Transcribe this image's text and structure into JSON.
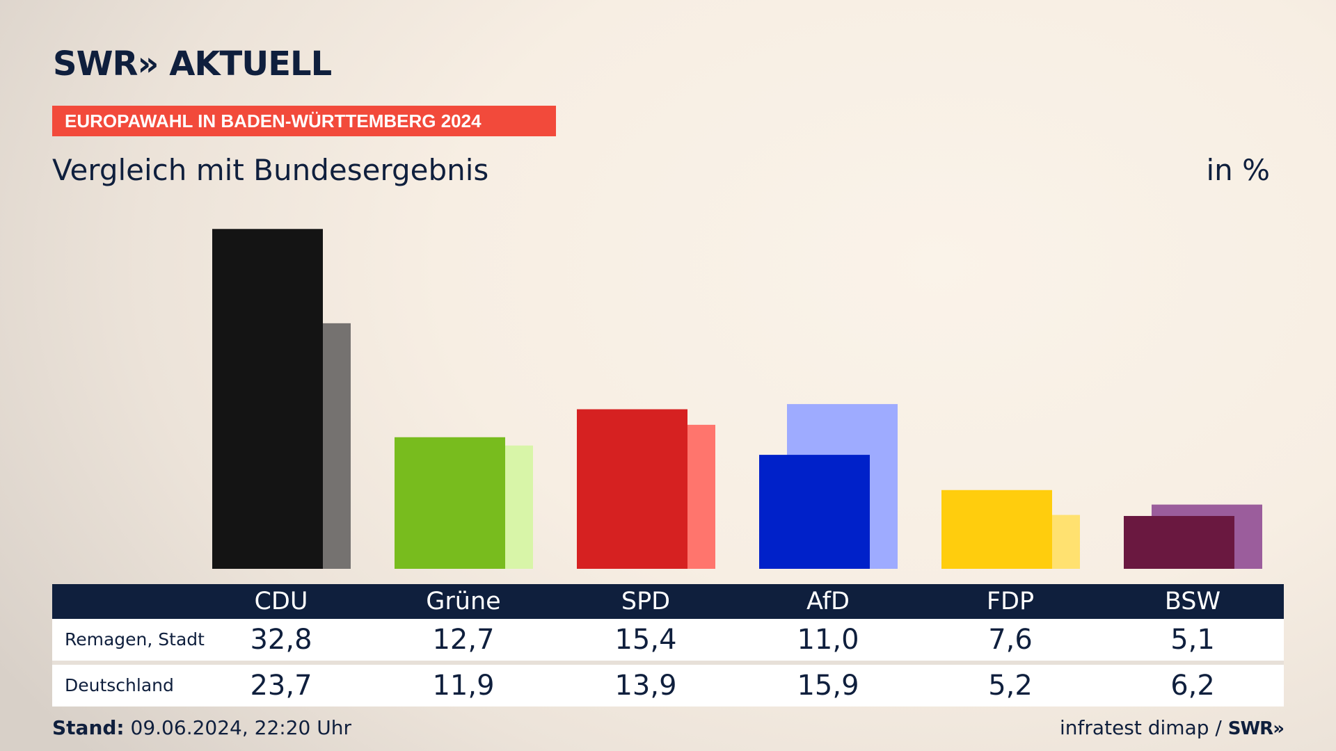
{
  "header": {
    "logo": "SWR» AKTUELL",
    "kicker": "EUROPAWAHL IN BADEN-WÜRTTEMBERG 2024",
    "title": "Vergleich mit Bundesergebnis",
    "unit": "in %"
  },
  "colors": {
    "CDU": [
      "#141414",
      "#757270"
    ],
    "Grüne": [
      "#78bc1e",
      "#d8f5a8"
    ],
    "SPD": [
      "#d62121",
      "#ff756d"
    ],
    "AfD": [
      "#0021c9",
      "#9eabff"
    ],
    "FDP": [
      "#ffcd0d",
      "#ffe170"
    ],
    "BSW": [
      "#6a1840",
      "#9b5d9c"
    ]
  },
  "chart_data": {
    "type": "bar",
    "categories": [
      "CDU",
      "Grüne",
      "SPD",
      "AfD",
      "FDP",
      "BSW"
    ],
    "series": [
      {
        "name": "Remagen, Stadt",
        "values": [
          32.8,
          12.7,
          15.4,
          11.0,
          7.6,
          5.1
        ]
      },
      {
        "name": "Deutschland",
        "values": [
          23.7,
          11.9,
          13.9,
          15.9,
          5.2,
          6.2
        ]
      }
    ],
    "title": "Vergleich mit Bundesergebnis",
    "ylabel": "in %"
  },
  "table": {
    "headers": [
      "CDU",
      "Grüne",
      "SPD",
      "AfD",
      "FDP",
      "BSW"
    ],
    "rows": [
      {
        "label": "Remagen, Stadt",
        "values": [
          "32,8",
          "12,7",
          "15,4",
          "11,0",
          "7,6",
          "5,1"
        ]
      },
      {
        "label": "Deutschland",
        "values": [
          "23,7",
          "11,9",
          "13,9",
          "15,9",
          "5,2",
          "6,2"
        ]
      }
    ]
  },
  "footer": {
    "stand_label": "Stand:",
    "stand_value": "09.06.2024, 22:20 Uhr",
    "source": "infratest dimap /",
    "source_logo": "SWR»"
  }
}
